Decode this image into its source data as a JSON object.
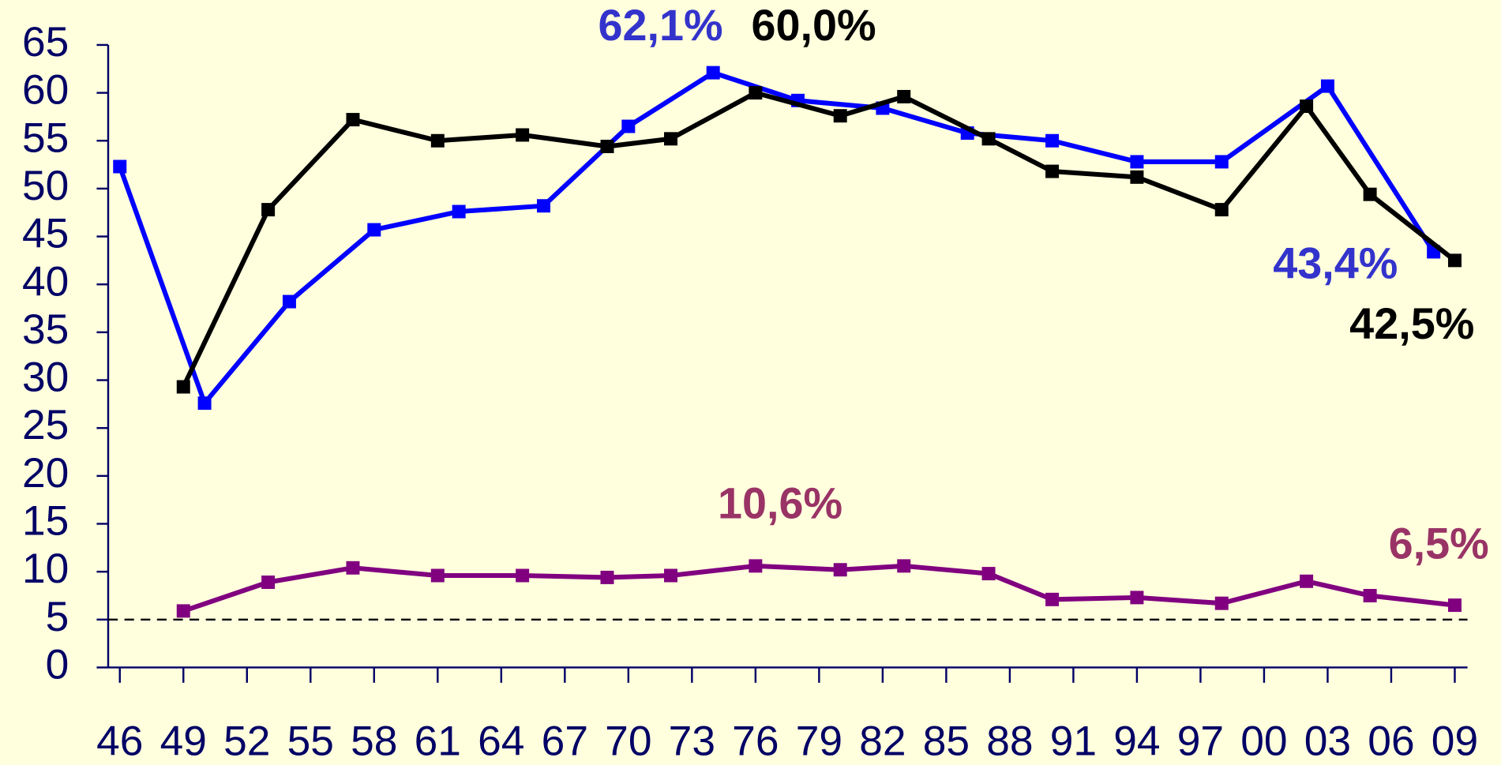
{
  "chart_data": {
    "type": "line",
    "xlim": [
      1945.45,
      2009.6
    ],
    "ylim": [
      0,
      65
    ],
    "yticks": [
      0,
      5,
      10,
      15,
      20,
      25,
      30,
      35,
      40,
      45,
      50,
      55,
      60,
      65
    ],
    "xticks": [
      {
        "value": 1946,
        "label": "46"
      },
      {
        "value": 1949,
        "label": "49"
      },
      {
        "value": 1952,
        "label": "52"
      },
      {
        "value": 1955,
        "label": "55"
      },
      {
        "value": 1958,
        "label": "58"
      },
      {
        "value": 1961,
        "label": "61"
      },
      {
        "value": 1964,
        "label": "64"
      },
      {
        "value": 1967,
        "label": "67"
      },
      {
        "value": 1970,
        "label": "70"
      },
      {
        "value": 1973,
        "label": "73"
      },
      {
        "value": 1976,
        "label": "76"
      },
      {
        "value": 1979,
        "label": "79"
      },
      {
        "value": 1982,
        "label": "82"
      },
      {
        "value": 1985,
        "label": "85"
      },
      {
        "value": 1988,
        "label": "88"
      },
      {
        "value": 1991,
        "label": "91"
      },
      {
        "value": 1994,
        "label": "94"
      },
      {
        "value": 1997,
        "label": "97"
      },
      {
        "value": 2000,
        "label": "00"
      },
      {
        "value": 2003,
        "label": "03"
      },
      {
        "value": 2006,
        "label": "06"
      },
      {
        "value": 2009,
        "label": "09"
      }
    ],
    "reference_line": 5,
    "series": [
      {
        "color": "#0000ff",
        "x": [
          1946,
          1950,
          1954,
          1958,
          1962,
          1966,
          1970,
          1974,
          1978,
          1982,
          1986,
          1990,
          1994,
          1998,
          2003,
          2008
        ],
        "values": [
          52.3,
          27.6,
          38.2,
          45.7,
          47.6,
          48.2,
          56.5,
          62.1,
          59.2,
          58.4,
          55.8,
          55.0,
          52.8,
          52.8,
          60.7,
          43.4
        ]
      },
      {
        "color": "#000000",
        "x": [
          1949,
          1953,
          1957,
          1961,
          1965,
          1969,
          1972,
          1976,
          1980,
          1983,
          1987,
          1990,
          1994,
          1998,
          2002,
          2005,
          2009
        ],
        "values": [
          29.3,
          47.8,
          57.2,
          55.0,
          55.6,
          54.4,
          55.2,
          60.0,
          57.6,
          59.6,
          55.2,
          51.8,
          51.2,
          47.8,
          58.6,
          49.4,
          42.5
        ]
      },
      {
        "color": "#800080",
        "x": [
          1949,
          1953,
          1957,
          1961,
          1965,
          1969,
          1972,
          1976,
          1980,
          1983,
          1987,
          1990,
          1994,
          1998,
          2002,
          2005,
          2009
        ],
        "values": [
          5.9,
          8.9,
          10.4,
          9.6,
          9.6,
          9.4,
          9.6,
          10.6,
          10.2,
          10.6,
          9.8,
          7.1,
          7.3,
          6.7,
          9.0,
          7.5,
          6.5
        ]
      }
    ],
    "annotations": [
      {
        "text": "62,1%",
        "color": "#3333cc"
      },
      {
        "text": "60,0%",
        "color": "#000000"
      },
      {
        "text": "43,4%",
        "color": "#3333cc"
      },
      {
        "text": "42,5%",
        "color": "#000000"
      },
      {
        "text": "10,6%",
        "color": "#993366"
      },
      {
        "text": "6,5%",
        "color": "#993366"
      }
    ]
  }
}
